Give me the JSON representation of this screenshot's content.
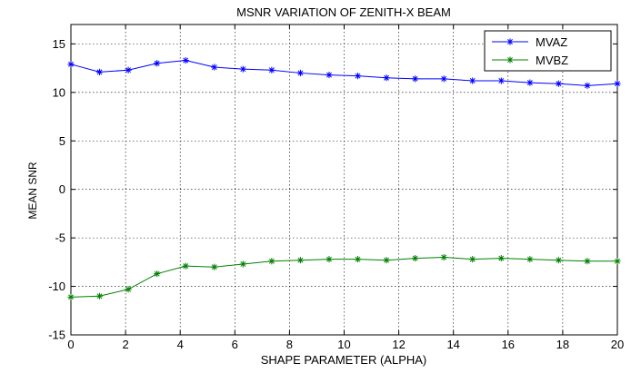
{
  "chart_data": {
    "type": "line",
    "title": "MSNR VARIATION OF ZENITH-X BEAM",
    "xlabel": "SHAPE PARAMETER (ALPHA)",
    "ylabel": "MEAN SNR",
    "xlim": [
      0,
      20
    ],
    "ylim": [
      -15,
      17
    ],
    "xticks": [
      0,
      2,
      4,
      6,
      8,
      10,
      12,
      14,
      16,
      18,
      20
    ],
    "yticks": [
      -15,
      -10,
      -5,
      0,
      5,
      10,
      15
    ],
    "grid": true,
    "legend_position": "top-right",
    "x": [
      0,
      1.05,
      2.1,
      3.15,
      4.2,
      5.25,
      6.3,
      7.35,
      8.4,
      9.45,
      10.5,
      11.55,
      12.6,
      13.65,
      14.7,
      15.75,
      16.8,
      17.85,
      18.9,
      20
    ],
    "series": [
      {
        "name": "MVAZ",
        "color": "#0000ff",
        "marker": "asterisk",
        "values": [
          12.9,
          12.1,
          12.3,
          13.0,
          13.3,
          12.6,
          12.4,
          12.3,
          12.0,
          11.8,
          11.7,
          11.5,
          11.4,
          11.4,
          11.2,
          11.2,
          11.0,
          10.9,
          10.7,
          10.9
        ]
      },
      {
        "name": "MVBZ",
        "color": "#008000",
        "marker": "asterisk",
        "values": [
          -11.1,
          -11.0,
          -10.3,
          -8.7,
          -7.9,
          -8.0,
          -7.7,
          -7.4,
          -7.3,
          -7.2,
          -7.2,
          -7.3,
          -7.1,
          -7.0,
          -7.2,
          -7.1,
          -7.2,
          -7.3,
          -7.4,
          -7.4
        ]
      }
    ]
  }
}
